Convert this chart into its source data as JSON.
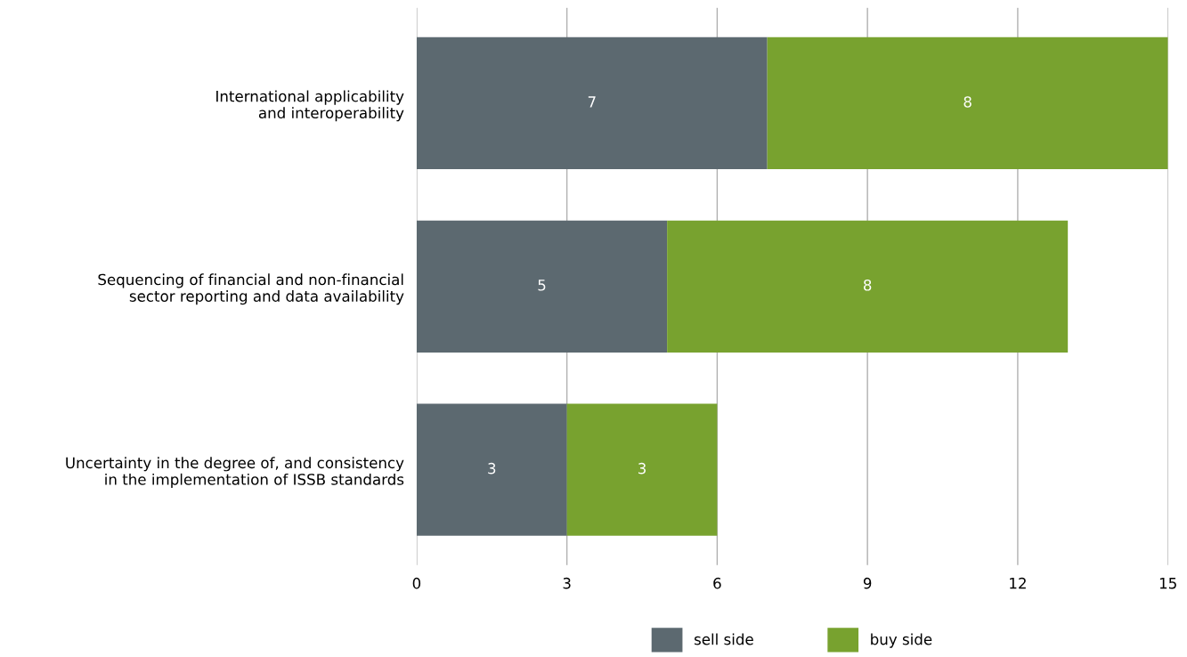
{
  "chart_data": {
    "type": "bar",
    "orientation": "horizontal",
    "stacked": true,
    "categories": [
      "International applicability\nand interoperability",
      "Sequencing of financial and non-financial\nsector reporting and data availability",
      "Uncertainty in the degree of, and consistency\nin the implementation of ISSB standards"
    ],
    "series": [
      {
        "name": "sell side",
        "color": "#5c6970",
        "values": [
          7,
          5,
          3
        ]
      },
      {
        "name": "buy side",
        "color": "#78a22f",
        "values": [
          8,
          8,
          3
        ]
      }
    ],
    "xlim": [
      0,
      15
    ],
    "xticks": [
      0,
      3,
      6,
      9,
      12,
      15
    ],
    "grid": "x",
    "legend": "bottom",
    "data_labels": true
  }
}
